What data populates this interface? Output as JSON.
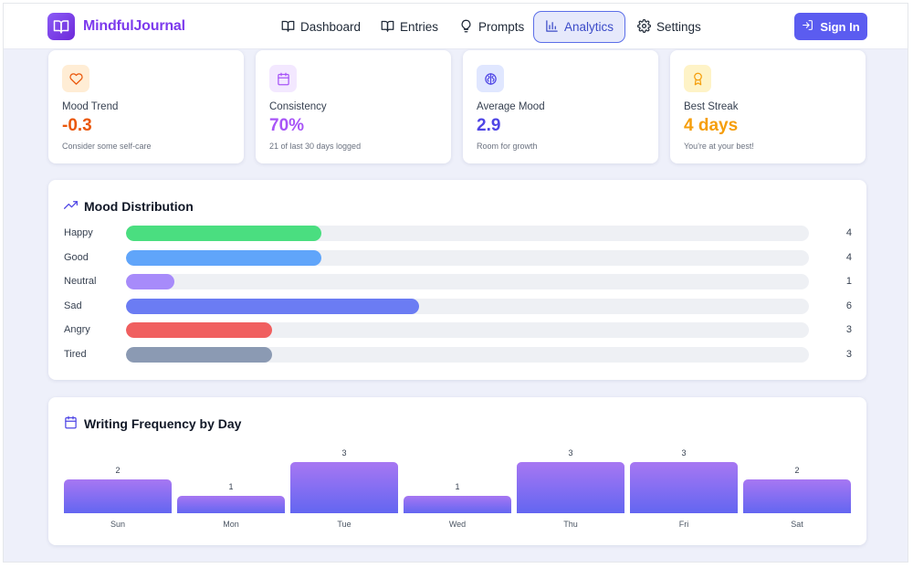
{
  "app": {
    "name": "MindfulJournal",
    "logo_icon": "book-open-icon",
    "brand_color": "#7c3aed"
  },
  "nav": {
    "items": [
      {
        "label": "Dashboard",
        "icon": "book-open-icon",
        "active": false
      },
      {
        "label": "Entries",
        "icon": "book-open-icon",
        "active": false
      },
      {
        "label": "Prompts",
        "icon": "lightbulb-icon",
        "active": false
      },
      {
        "label": "Analytics",
        "icon": "bar-chart-icon",
        "active": true
      },
      {
        "label": "Settings",
        "icon": "gear-icon",
        "active": false
      }
    ],
    "signin_label": "Sign In",
    "signin_icon": "log-in-icon",
    "accent_color": "#5b5cf0"
  },
  "stats": [
    {
      "label": "Mood Trend",
      "value": "-0.3",
      "sub": "Consider some self-care",
      "icon": "heart-icon",
      "color": "#ea580c",
      "icon_bg": "#ffedd5"
    },
    {
      "label": "Consistency",
      "value": "70%",
      "sub": "21 of last 30 days logged",
      "icon": "calendar-icon",
      "color": "#a855f7",
      "icon_bg": "#f3e8ff"
    },
    {
      "label": "Average Mood",
      "value": "2.9",
      "sub": "Room for growth",
      "icon": "brain-icon",
      "color": "#4f46e5",
      "icon_bg": "#e0e7ff"
    },
    {
      "label": "Best Streak",
      "value": "4 days",
      "sub": "You're at your best!",
      "icon": "award-icon",
      "color": "#f59e0b",
      "icon_bg": "#fef3c7"
    }
  ],
  "mood_distribution": {
    "title": "Mood Distribution",
    "icon": "trending-up-icon",
    "max": 14,
    "moods": [
      {
        "name": "Happy",
        "count": 4,
        "color": "#4ade80"
      },
      {
        "name": "Good",
        "count": 4,
        "color": "#60a5fa"
      },
      {
        "name": "Neutral",
        "count": 1,
        "color": "#a78bfa"
      },
      {
        "name": "Sad",
        "count": 6,
        "color": "#6b7cf3"
      },
      {
        "name": "Angry",
        "count": 3,
        "color": "#f05f5f"
      },
      {
        "name": "Tired",
        "count": 3,
        "color": "#8b9ab3"
      }
    ]
  },
  "writing_frequency": {
    "title": "Writing Frequency by Day",
    "icon": "calendar-icon",
    "chart_data": {
      "type": "bar",
      "categories": [
        "Sun",
        "Mon",
        "Tue",
        "Wed",
        "Thu",
        "Fri",
        "Sat"
      ],
      "values": [
        2,
        1,
        3,
        1,
        3,
        3,
        2
      ],
      "ylim": [
        0,
        3
      ]
    }
  }
}
